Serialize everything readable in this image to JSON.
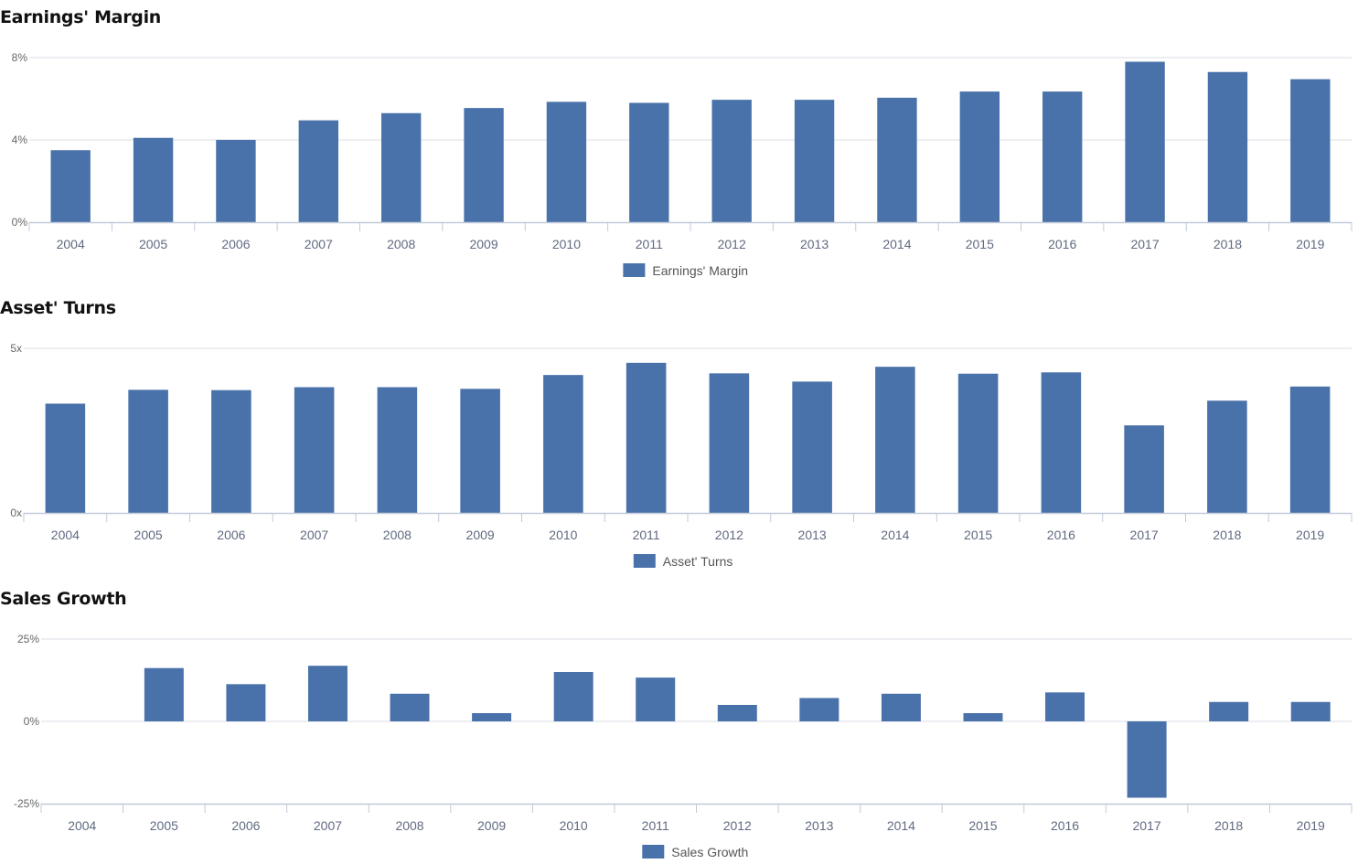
{
  "colors": {
    "bar": "#4a72aa",
    "grid": "#d8dde6",
    "axis": "#c0cad8"
  },
  "chart_data": [
    {
      "type": "bar",
      "title": "Earnings' Margin",
      "categories": [
        "2004",
        "2005",
        "2006",
        "2007",
        "2008",
        "2009",
        "2010",
        "2011",
        "2012",
        "2013",
        "2014",
        "2015",
        "2016",
        "2017",
        "2018",
        "2019"
      ],
      "series": [
        {
          "name": "Earnings' Margin",
          "values": [
            3.5,
            4.1,
            4.0,
            4.95,
            5.3,
            5.55,
            5.85,
            5.8,
            5.95,
            5.95,
            6.05,
            6.35,
            6.35,
            7.8,
            7.3,
            6.95
          ]
        }
      ],
      "yticks": [
        {
          "value": 0,
          "label": "0%"
        },
        {
          "value": 4,
          "label": "4%"
        },
        {
          "value": 8,
          "label": "8%"
        }
      ],
      "ylim": [
        0,
        8
      ],
      "grid": true,
      "legend": "bottom-center"
    },
    {
      "type": "bar",
      "title": "Asset' Turns",
      "categories": [
        "2004",
        "2005",
        "2006",
        "2007",
        "2008",
        "2009",
        "2010",
        "2011",
        "2012",
        "2013",
        "2014",
        "2015",
        "2016",
        "2017",
        "2018",
        "2019"
      ],
      "series": [
        {
          "name": "Asset' Turns",
          "values": [
            3.32,
            3.74,
            3.73,
            3.82,
            3.82,
            3.77,
            4.19,
            4.56,
            4.24,
            3.99,
            4.44,
            4.23,
            4.27,
            2.66,
            3.41,
            3.84
          ]
        }
      ],
      "yticks": [
        {
          "value": 0,
          "label": "0x"
        },
        {
          "value": 5,
          "label": "5x"
        }
      ],
      "ylim": [
        0,
        5
      ],
      "grid": true,
      "legend": "bottom-center"
    },
    {
      "type": "bar",
      "title": "Sales Growth",
      "categories": [
        "2004",
        "2005",
        "2006",
        "2007",
        "2008",
        "2009",
        "2010",
        "2011",
        "2012",
        "2013",
        "2014",
        "2015",
        "2016",
        "2017",
        "2018",
        "2019"
      ],
      "series": [
        {
          "name": "Sales Growth",
          "values": [
            0,
            16.2,
            11.3,
            16.9,
            8.4,
            2.5,
            15.0,
            13.3,
            5.0,
            7.1,
            8.4,
            2.5,
            8.8,
            -23.2,
            5.9,
            5.9
          ]
        }
      ],
      "yticks": [
        {
          "value": -25,
          "label": "-25%"
        },
        {
          "value": 0,
          "label": "0%"
        },
        {
          "value": 25,
          "label": "25%"
        }
      ],
      "ylim": [
        -25,
        25
      ],
      "grid": true,
      "legend": "bottom-center"
    }
  ]
}
